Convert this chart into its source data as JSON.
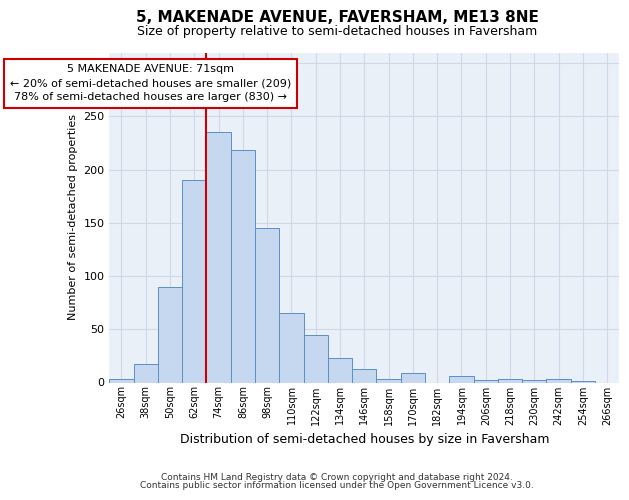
{
  "title": "5, MAKENADE AVENUE, FAVERSHAM, ME13 8NE",
  "subtitle": "Size of property relative to semi-detached houses in Faversham",
  "xlabel": "Distribution of semi-detached houses by size in Faversham",
  "ylabel": "Number of semi-detached properties",
  "footer_line1": "Contains HM Land Registry data © Crown copyright and database right 2024.",
  "footer_line2": "Contains public sector information licensed under the Open Government Licence v3.0.",
  "bin_labels": [
    "26sqm",
    "38sqm",
    "50sqm",
    "62sqm",
    "74sqm",
    "86sqm",
    "98sqm",
    "110sqm",
    "122sqm",
    "134sqm",
    "146sqm",
    "158sqm",
    "170sqm",
    "182sqm",
    "194sqm",
    "206sqm",
    "218sqm",
    "230sqm",
    "242sqm",
    "254sqm",
    "266sqm"
  ],
  "bar_heights": [
    3,
    17,
    90,
    190,
    235,
    218,
    145,
    65,
    45,
    23,
    13,
    3,
    9,
    0,
    6,
    2,
    3,
    2,
    3,
    1,
    0
  ],
  "bar_color": "#c5d8ef",
  "bar_edge_color": "#5b8fc8",
  "vline_color": "#cc0000",
  "vline_x_index": 4,
  "annotation_text": "5 MAKENADE AVENUE: 71sqm\n← 20% of semi-detached houses are smaller (209)\n78% of semi-detached houses are larger (830) →",
  "annotation_box_color": "#ffffff",
  "annotation_box_edge": "#cc0000",
  "ylim": [
    0,
    310
  ],
  "yticks": [
    0,
    50,
    100,
    150,
    200,
    250,
    300
  ],
  "grid_color": "#d0d8e8",
  "bg_color": "#eaf0f8",
  "title_fontsize": 11,
  "subtitle_fontsize": 9,
  "annotation_fontsize": 8,
  "ylabel_fontsize": 8,
  "xlabel_fontsize": 9,
  "footer_fontsize": 6.5,
  "tick_fontsize": 7
}
